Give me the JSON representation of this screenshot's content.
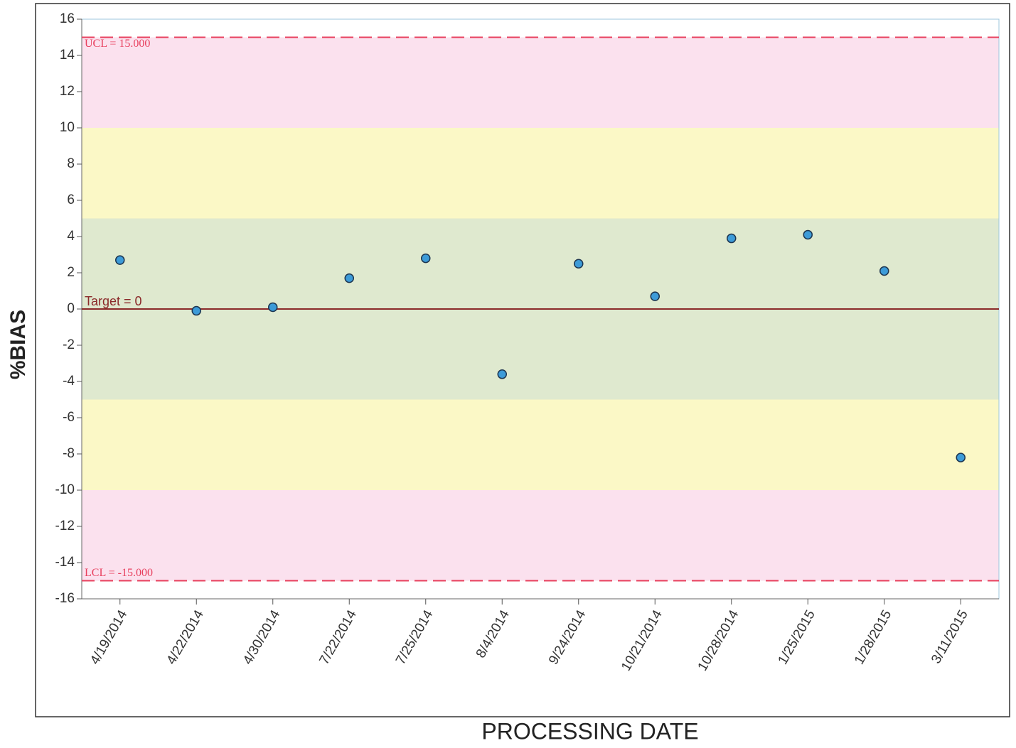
{
  "chart_data": {
    "type": "scatter",
    "x_label": "PROCESSING DATE",
    "y_label": "%BIAS",
    "categories": [
      "4/19/2014",
      "4/22/2014",
      "4/30/2014",
      "7/22/2014",
      "7/25/2014",
      "8/4/2014",
      "9/24/2014",
      "10/21/2014",
      "10/28/2014",
      "1/25/2015",
      "1/28/2015",
      "3/11/2015"
    ],
    "values": [
      2.7,
      -0.1,
      0.1,
      1.7,
      2.8,
      -3.6,
      2.5,
      0.7,
      3.9,
      4.1,
      2.1,
      -8.2
    ],
    "color": "#3d9bd8",
    "ylim": [
      -16,
      16
    ],
    "yticks": [
      -16,
      -14,
      -12,
      -10,
      -8,
      -6,
      -4,
      -2,
      0,
      2,
      4,
      6,
      8,
      10,
      12,
      14,
      16
    ],
    "bands": [
      {
        "from": 10,
        "to": 15,
        "color": "#fbe1ee"
      },
      {
        "from": 5,
        "to": 10,
        "color": "#fbf8c6"
      },
      {
        "from": -5,
        "to": 5,
        "color": "#dfe9cf"
      },
      {
        "from": -10,
        "to": -5,
        "color": "#fbf8c6"
      },
      {
        "from": -15,
        "to": -10,
        "color": "#fbe1ee"
      }
    ],
    "control_lines": [
      {
        "label": "UCL = 15.000",
        "value": 15,
        "color": "#e8405e",
        "dashed": true
      },
      {
        "label": "Target = 0",
        "value": 0,
        "color": "#8b2a2a",
        "dashed": false
      },
      {
        "label": "LCL = -15.000",
        "value": -15,
        "color": "#e8405e",
        "dashed": true
      }
    ]
  }
}
